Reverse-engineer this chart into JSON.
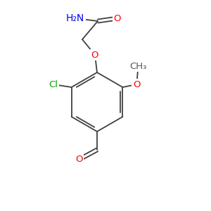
{
  "background_color": "#ffffff",
  "atom_colors": {
    "O": "#ff0000",
    "N": "#0000ff",
    "Cl": "#00aa00",
    "C": "#000000",
    "H": "#555555"
  },
  "font_size": 9.5,
  "bond_color": "#404040",
  "bond_width": 1.3
}
